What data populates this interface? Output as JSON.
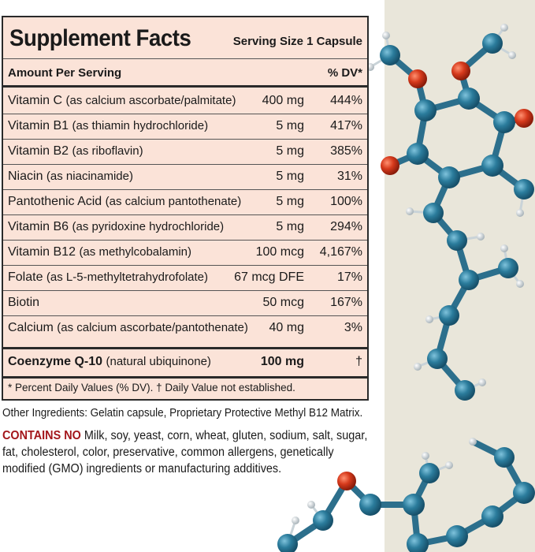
{
  "header": {
    "title": "Supplement Facts",
    "serving": "Serving Size 1 Capsule"
  },
  "table": {
    "columns": [
      "Amount Per Serving",
      "% DV*"
    ],
    "rows": [
      {
        "name": "Vitamin C",
        "detail": "(as calcium ascorbate/palmitate)",
        "amount": "400 mg",
        "dv": "444%"
      },
      {
        "name": "Vitamin B1",
        "detail": "(as thiamin hydrochloride)",
        "amount": "5 mg",
        "dv": "417%"
      },
      {
        "name": "Vitamin B2",
        "detail": "(as riboflavin)",
        "amount": "5 mg",
        "dv": "385%"
      },
      {
        "name": "Niacin",
        "detail": "(as niacinamide)",
        "amount": "5 mg",
        "dv": "31%"
      },
      {
        "name": "Pantothenic Acid",
        "detail": "(as calcium pantothenate)",
        "amount": "5 mg",
        "dv": "100%"
      },
      {
        "name": "Vitamin B6",
        "detail": "(as pyridoxine hydrochloride)",
        "amount": "5 mg",
        "dv": "294%"
      },
      {
        "name": "Vitamin B12",
        "detail": "(as methylcobalamin)",
        "amount": "100 mcg",
        "dv": "4,167%"
      },
      {
        "name": "Folate",
        "detail": "(as L-5-methyltetrahydrofolate)",
        "amount": "67 mcg DFE",
        "dv": "17%"
      },
      {
        "name": "Biotin",
        "detail": "",
        "amount": "50 mcg",
        "dv": "167%"
      },
      {
        "name": "Calcium",
        "detail": "(as calcium ascorbate/pantothenate)",
        "amount": "40 mg",
        "dv": "3%"
      },
      {
        "name": "Coenzyme Q-10",
        "detail": "(natural ubiquinone)",
        "amount": "100 mg",
        "dv": "†"
      }
    ],
    "footnote": "* Percent Daily Values (% DV). † Daily Value not established."
  },
  "other_ingredients": "Other Ingredients: Gelatin capsule, Proprietary Protective Methyl B12 Matrix.",
  "contains_no": {
    "label": "CONTAINS NO",
    "text": "Milk, soy, yeast, corn, wheat, gluten, sodium, salt, sugar, fat, cholesterol, color, preservative, common allergens, genetically modified (GMO) ingredients or manufacturing additives."
  }
}
